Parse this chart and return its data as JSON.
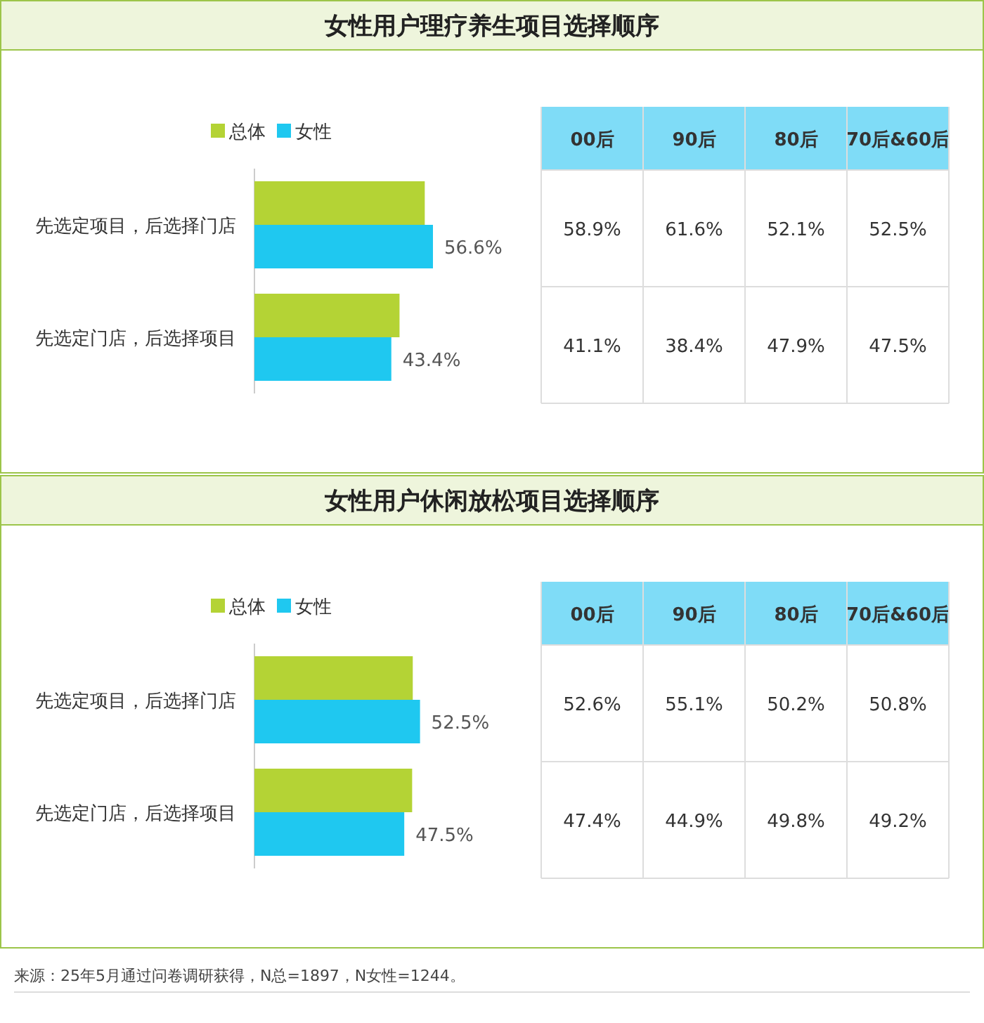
{
  "chart_data": [
    {
      "type": "bar",
      "orientation": "horizontal",
      "title": "女性用户理疗养生项目选择顺序",
      "categories": [
        "先选定项目，后选择门店",
        "先选定门店，后选择项目"
      ],
      "legend": "top",
      "series": [
        {
          "name": "总体",
          "color": "#b4d335",
          "values": [
            54.0,
            46.0
          ]
        },
        {
          "name": "女性",
          "color": "#1fc8f0",
          "values": [
            56.6,
            43.4
          ],
          "value_labels": [
            "56.6%",
            "43.4%"
          ]
        }
      ]
    },
    {
      "type": "heatmap",
      "categories": [
        "00后",
        "90后",
        "80后",
        "70后&60后"
      ],
      "y_categories": [
        null,
        null
      ],
      "cells": [
        [
          58.9,
          61.6,
          52.1,
          52.5
        ],
        [
          41.1,
          38.4,
          47.9,
          47.5
        ]
      ],
      "cell_labels": [
        [
          "58.9%",
          "61.6%",
          "52.1%",
          "52.5%"
        ],
        [
          "41.1%",
          "38.4%",
          "47.9%",
          "47.5%"
        ]
      ]
    },
    {
      "type": "bar",
      "orientation": "horizontal",
      "title": "女性用户休闲放松项目选择顺序",
      "categories": [
        "先选定项目，后选择门店",
        "先选定门店，后选择项目"
      ],
      "legend": "top",
      "series": [
        {
          "name": "总体",
          "color": "#b4d335",
          "values": [
            50.2,
            50.0
          ]
        },
        {
          "name": "女性",
          "color": "#1fc8f0",
          "values": [
            52.5,
            47.5
          ],
          "value_labels": [
            "52.5%",
            "47.5%"
          ]
        }
      ]
    },
    {
      "type": "heatmap",
      "categories": [
        "00后",
        "90后",
        "80后",
        "70后&60后"
      ],
      "y_categories": [
        null,
        null
      ],
      "cells": [
        [
          52.6,
          55.1,
          50.2,
          50.8
        ],
        [
          47.4,
          44.9,
          49.8,
          49.2
        ]
      ],
      "cell_labels": [
        [
          "52.6%",
          "55.1%",
          "50.2%",
          "50.8%"
        ],
        [
          "47.4%",
          "44.9%",
          "49.8%",
          "49.2%"
        ]
      ],
      "annotations": [
        "来源：25年5月通过问卷调研获得，N总=1897，N女性=1244。"
      ]
    }
  ]
}
